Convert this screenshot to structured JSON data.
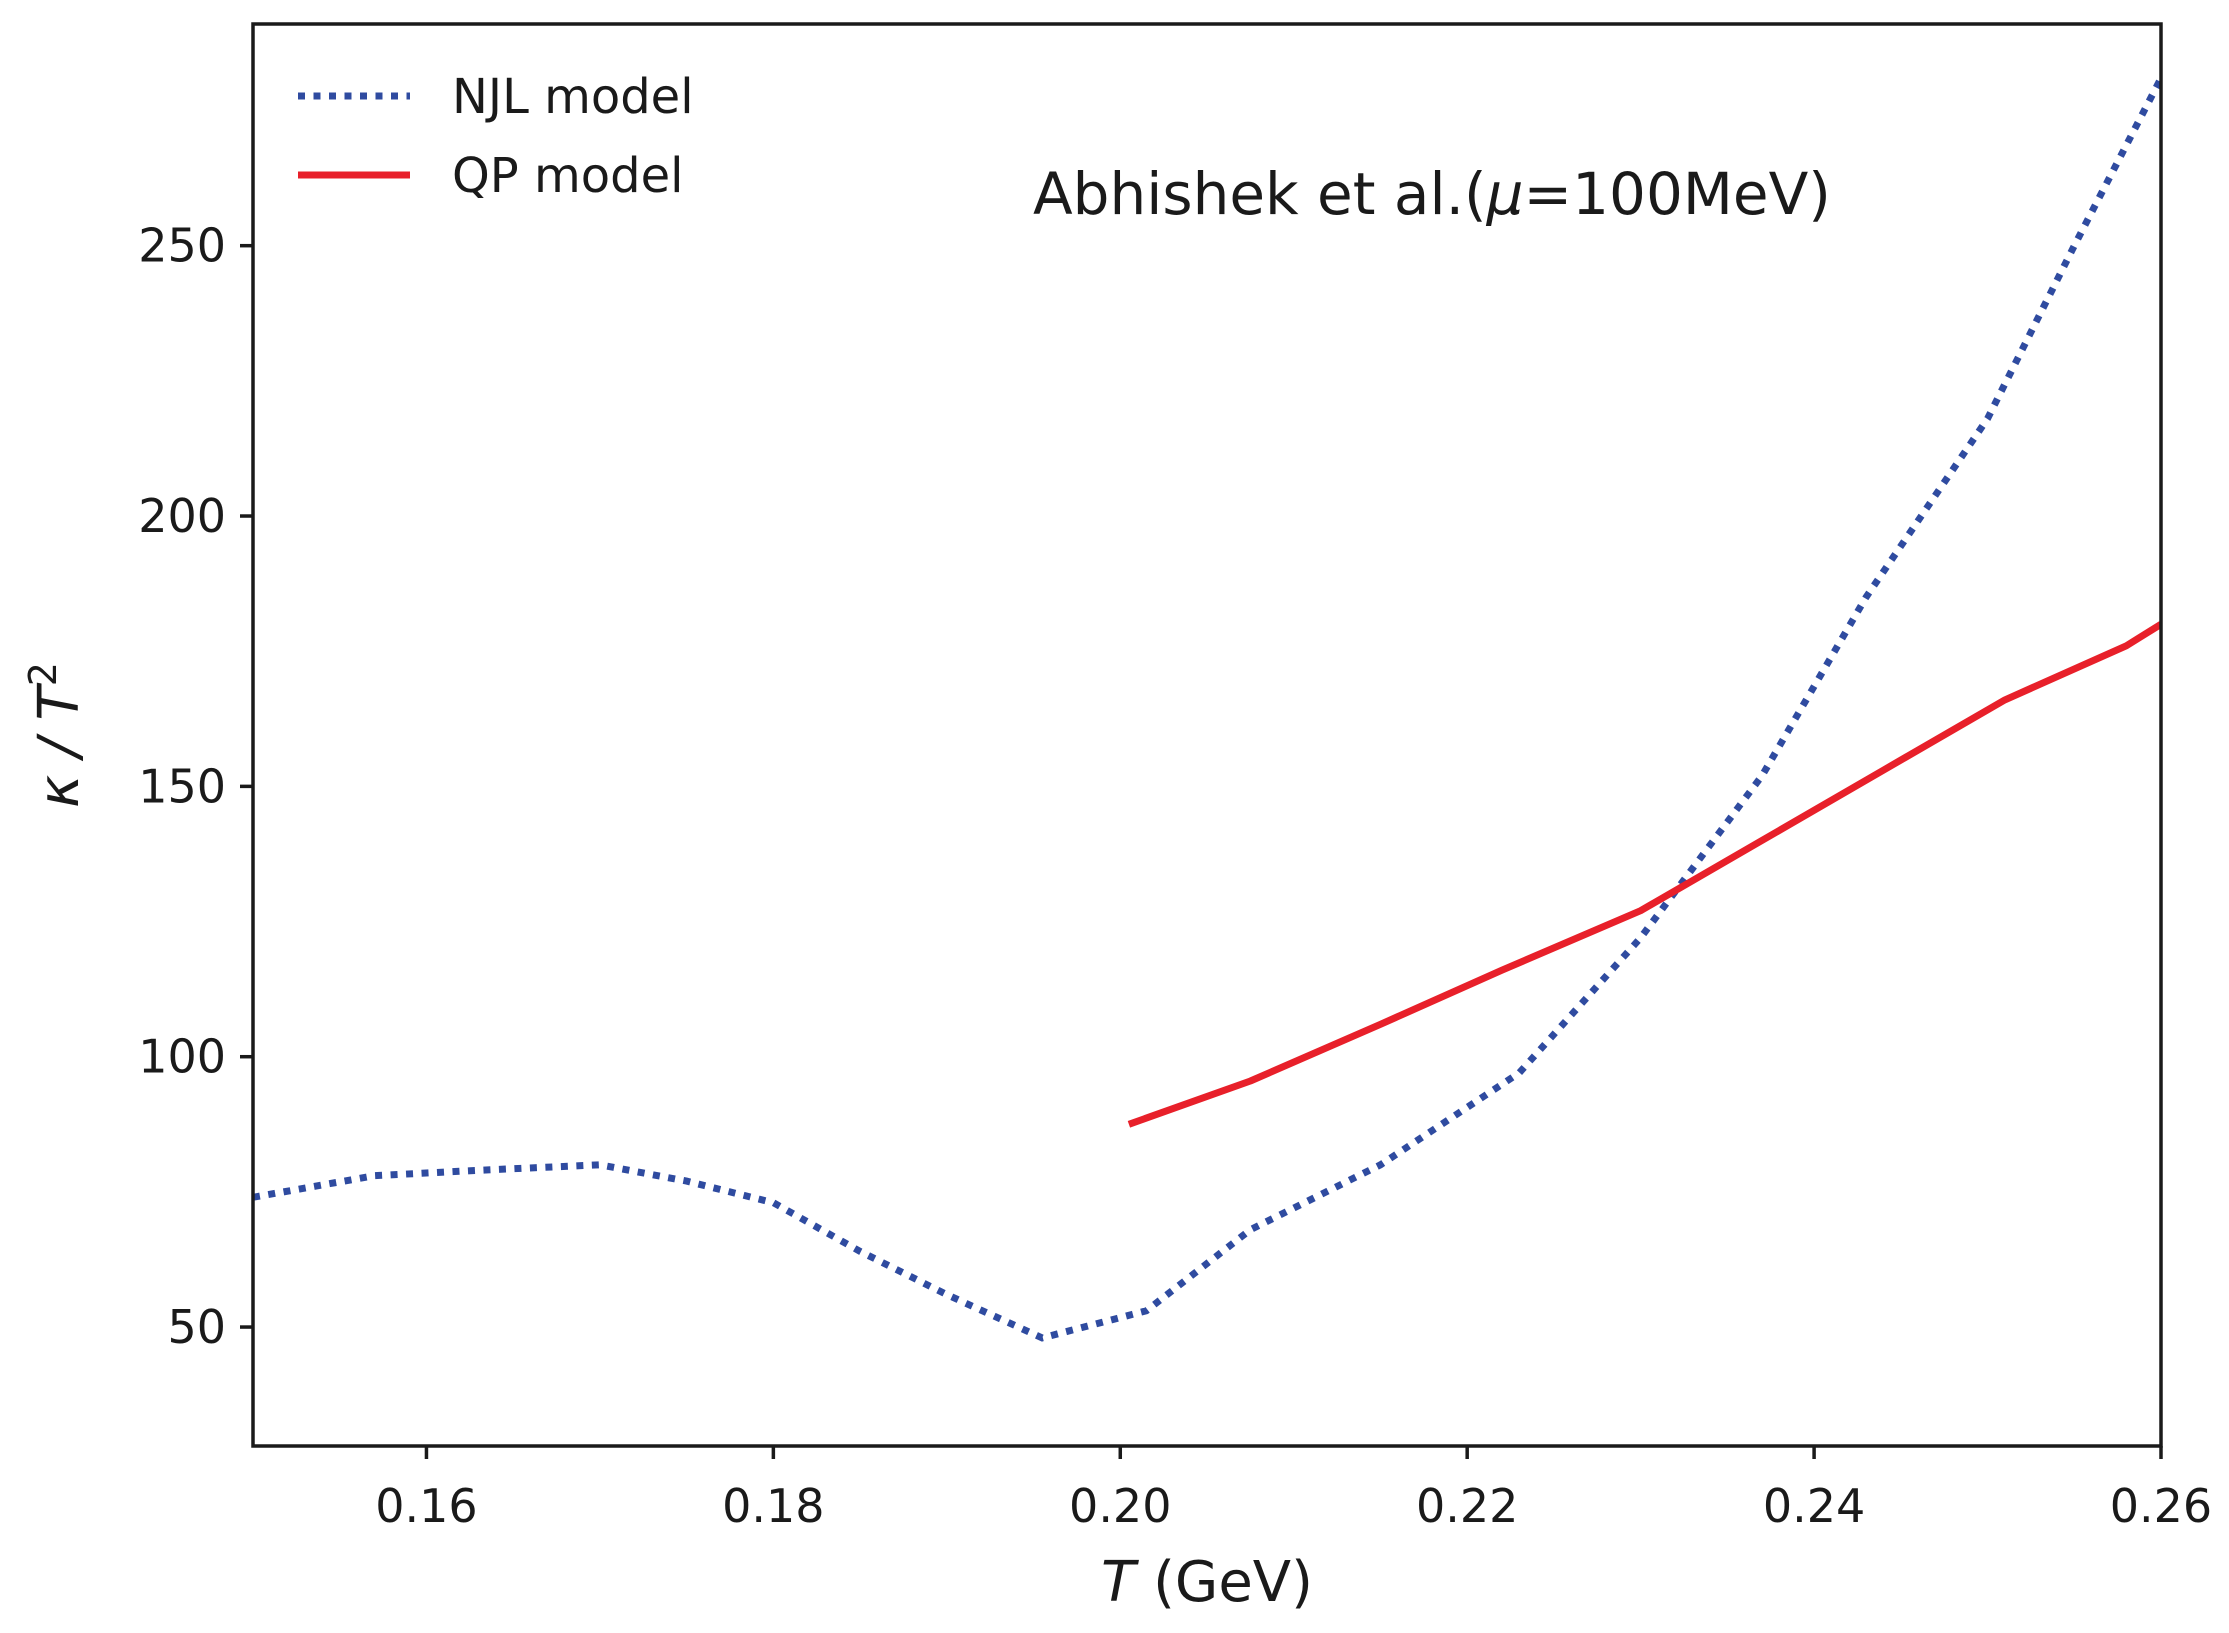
{
  "chart_data": {
    "type": "line",
    "xlabel": {
      "italic": "T",
      "rest": " (GeV)"
    },
    "ylabel": {
      "base": "κ / T",
      "sup": "2"
    },
    "xlim": [
      0.15,
      0.26
    ],
    "ylim": [
      28,
      291
    ],
    "xticks": [
      0.16,
      0.18,
      0.2,
      0.22,
      0.24,
      0.26
    ],
    "xtick_labels": [
      "0.16",
      "0.18",
      "0.20",
      "0.22",
      "0.24",
      "0.26"
    ],
    "yticks": [
      50,
      100,
      150,
      200,
      250
    ],
    "ytick_labels": [
      "50",
      "100",
      "150",
      "200",
      "250"
    ],
    "grid": false,
    "legend_position": "top-left",
    "annotation": {
      "prefix": "Abhishek et al.(",
      "mu": "μ",
      "suffix": "=100MeV)"
    },
    "series": [
      {
        "name": "NJL model",
        "style": "dotted",
        "color": "#2f4ba0",
        "x": [
          0.15,
          0.157,
          0.163,
          0.17,
          0.175,
          0.18,
          0.185,
          0.19,
          0.1955,
          0.2015,
          0.2075,
          0.215,
          0.223,
          0.23,
          0.237,
          0.243,
          0.25,
          0.255,
          0.26
        ],
        "y": [
          74,
          78,
          79,
          80,
          77,
          73,
          64,
          56,
          48,
          53,
          68,
          80,
          97,
          122,
          152,
          185,
          218,
          250,
          281
        ]
      },
      {
        "name": "QP model",
        "style": "solid",
        "color": "#e8202a",
        "x": [
          0.2005,
          0.2075,
          0.215,
          0.222,
          0.23,
          0.237,
          0.244,
          0.251,
          0.258,
          0.26
        ],
        "y": [
          87.5,
          95.5,
          106,
          116,
          127,
          140,
          153,
          166,
          176,
          180
        ]
      }
    ]
  }
}
